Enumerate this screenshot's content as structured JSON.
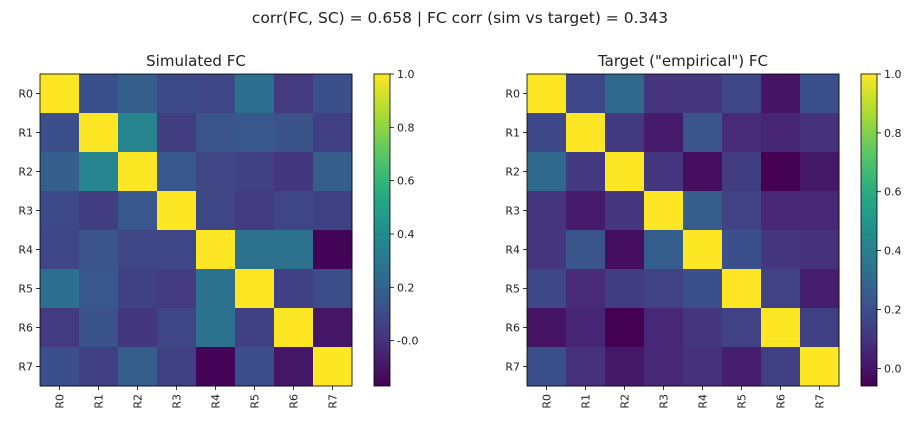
{
  "suptitle": "corr(FC, SC) = 0.658   |   FC corr (sim vs target) = 0.343",
  "chart_data": [
    {
      "type": "heatmap",
      "title": "Simulated FC",
      "colormap": "viridis",
      "rows": [
        "R0",
        "R1",
        "R2",
        "R3",
        "R4",
        "R5",
        "R6",
        "R7"
      ],
      "cols": [
        "R0",
        "R1",
        "R2",
        "R3",
        "R4",
        "R5",
        "R6",
        "R7"
      ],
      "vmin": -0.17,
      "vmax": 1.0,
      "colorbar_ticks": [
        "-0.0",
        "0.2",
        "0.4",
        "0.6",
        "0.8",
        "1.0"
      ],
      "colorbar_tick_values": [
        0.0,
        0.2,
        0.4,
        0.6,
        0.8,
        1.0
      ],
      "values": [
        [
          1.0,
          0.12,
          0.18,
          0.09,
          0.08,
          0.26,
          0.03,
          0.12
        ],
        [
          0.12,
          1.0,
          0.36,
          0.04,
          0.14,
          0.15,
          0.13,
          0.05
        ],
        [
          0.18,
          0.36,
          1.0,
          0.15,
          0.08,
          0.06,
          0.02,
          0.18
        ],
        [
          0.09,
          0.04,
          0.15,
          1.0,
          0.08,
          0.03,
          0.08,
          0.06
        ],
        [
          0.08,
          0.14,
          0.08,
          0.08,
          1.0,
          0.27,
          0.27,
          -0.16
        ],
        [
          0.26,
          0.15,
          0.06,
          0.03,
          0.27,
          1.0,
          0.06,
          0.11
        ],
        [
          0.03,
          0.13,
          0.02,
          0.08,
          0.27,
          0.06,
          1.0,
          -0.1
        ],
        [
          0.12,
          0.05,
          0.18,
          0.06,
          -0.16,
          0.11,
          -0.1,
          1.0
        ]
      ]
    },
    {
      "type": "heatmap",
      "title": "Target (\"empirical\") FC",
      "colormap": "viridis",
      "rows": [
        "R0",
        "R1",
        "R2",
        "R3",
        "R4",
        "R5",
        "R6",
        "R7"
      ],
      "cols": [
        "R0",
        "R1",
        "R2",
        "R3",
        "R4",
        "R5",
        "R6",
        "R7"
      ],
      "vmin": -0.06,
      "vmax": 1.0,
      "colorbar_ticks": [
        "0.0",
        "0.2",
        "0.4",
        "0.6",
        "0.8",
        "1.0"
      ],
      "colorbar_tick_values": [
        0.0,
        0.2,
        0.4,
        0.6,
        0.8,
        1.0
      ],
      "values": [
        [
          1.0,
          0.17,
          0.31,
          0.1,
          0.11,
          0.17,
          0.0,
          0.2
        ],
        [
          0.17,
          1.0,
          0.12,
          0.02,
          0.22,
          0.07,
          0.05,
          0.09
        ],
        [
          0.31,
          0.12,
          1.0,
          0.11,
          -0.02,
          0.13,
          -0.06,
          0.01
        ],
        [
          0.1,
          0.02,
          0.11,
          1.0,
          0.26,
          0.15,
          0.06,
          0.06
        ],
        [
          0.11,
          0.22,
          -0.02,
          0.26,
          1.0,
          0.2,
          0.11,
          0.09
        ],
        [
          0.17,
          0.07,
          0.13,
          0.15,
          0.2,
          1.0,
          0.15,
          0.03
        ],
        [
          0.0,
          0.05,
          -0.06,
          0.06,
          0.11,
          0.15,
          1.0,
          0.14
        ],
        [
          0.2,
          0.09,
          0.01,
          0.06,
          0.09,
          0.03,
          0.14,
          1.0
        ]
      ]
    }
  ]
}
